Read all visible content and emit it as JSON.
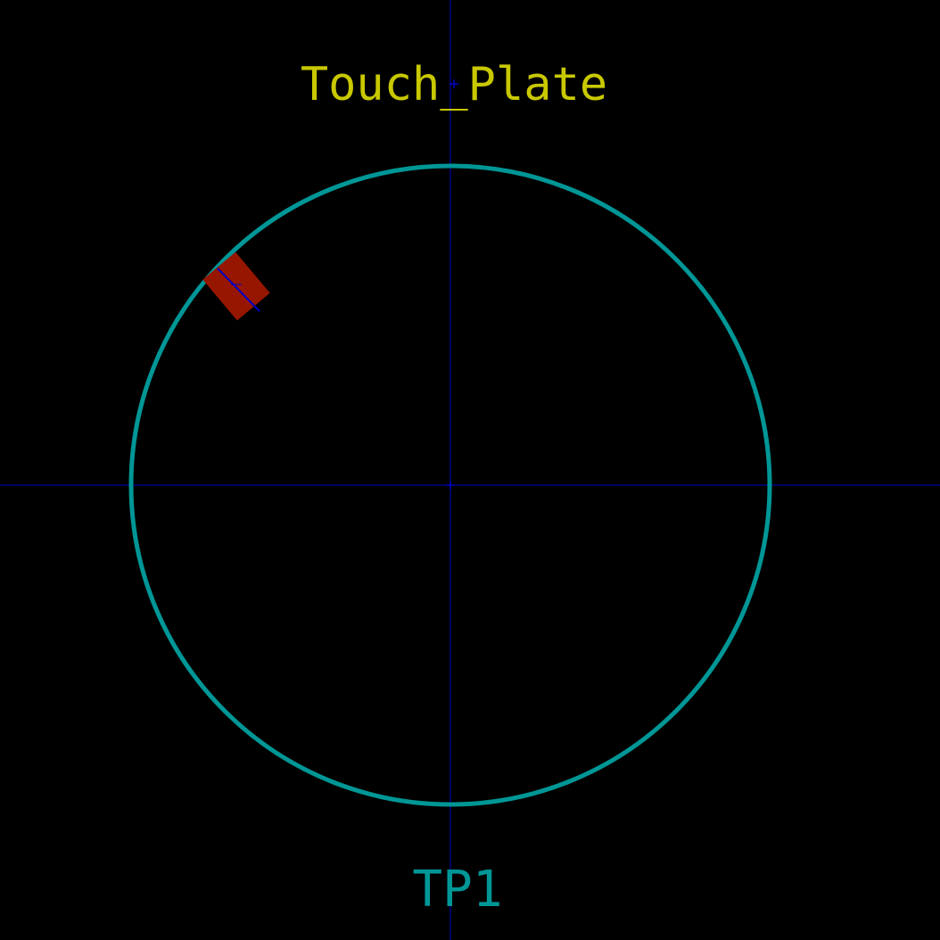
{
  "footprint": {
    "value_text": "Touch_Plate",
    "reference_text": "TP1"
  },
  "colors": {
    "background": "#000000",
    "value_text": "#c8c800",
    "reference_text": "#009696",
    "outline": "#009696",
    "pad": "#961600",
    "axes": "#0000c8",
    "pad_marker": "#0000c8"
  }
}
